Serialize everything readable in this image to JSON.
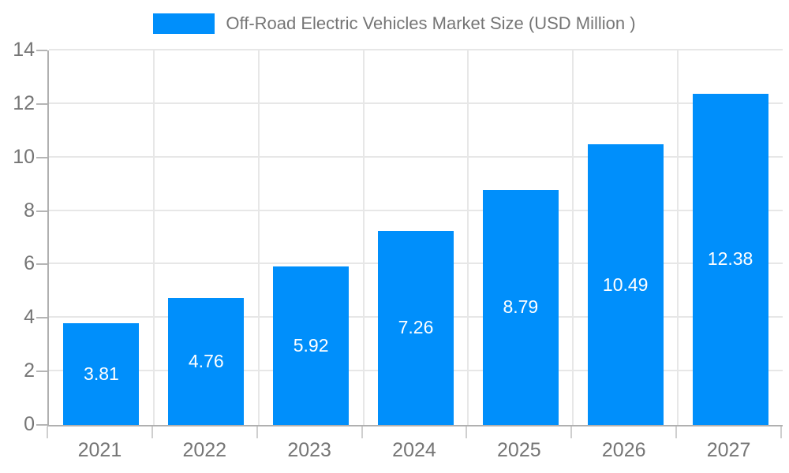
{
  "chart_data": {
    "type": "bar",
    "title": "Off-Road Electric Vehicles Market Size (USD Million )",
    "categories": [
      "2021",
      "2022",
      "2023",
      "2024",
      "2025",
      "2026",
      "2027"
    ],
    "values": [
      3.81,
      4.76,
      5.92,
      7.26,
      8.79,
      10.49,
      12.38
    ],
    "value_labels": [
      "3.81",
      "4.76",
      "5.92",
      "7.26",
      "8.79",
      "10.49",
      "12.38"
    ],
    "xlabel": "",
    "ylabel": "",
    "ylim": [
      0,
      14
    ],
    "yticks": [
      0,
      2,
      4,
      6,
      8,
      10,
      12,
      14
    ],
    "grid": "both",
    "legend_position": "top",
    "colors": {
      "bar": "#008ffb",
      "bar_value_text": "#ffffff",
      "axis_text": "#757575",
      "gridline": "#e7e7e7",
      "axis_line": "#b0b0b0"
    }
  }
}
